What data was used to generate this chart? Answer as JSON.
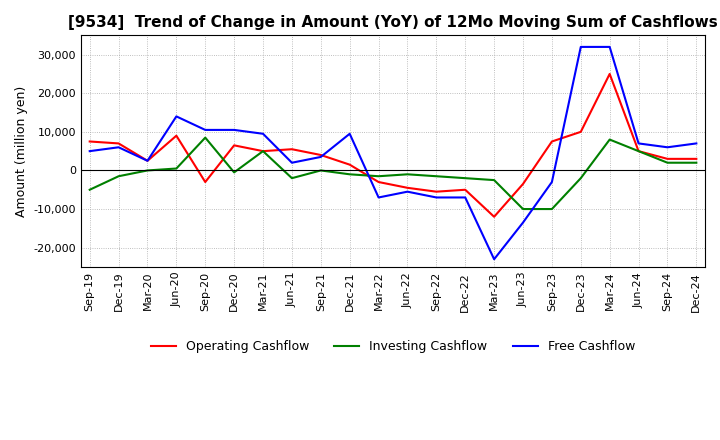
{
  "title": "[9534]  Trend of Change in Amount (YoY) of 12Mo Moving Sum of Cashflows",
  "ylabel": "Amount (million yen)",
  "ylim": [
    -25000,
    35000
  ],
  "yticks": [
    -20000,
    -10000,
    0,
    10000,
    20000,
    30000
  ],
  "x_labels": [
    "Sep-19",
    "Dec-19",
    "Mar-20",
    "Jun-20",
    "Sep-20",
    "Dec-20",
    "Mar-21",
    "Jun-21",
    "Sep-21",
    "Dec-21",
    "Mar-22",
    "Jun-22",
    "Sep-22",
    "Dec-22",
    "Mar-23",
    "Jun-23",
    "Sep-23",
    "Dec-23",
    "Mar-24",
    "Jun-24",
    "Sep-24",
    "Dec-24"
  ],
  "operating": [
    7500,
    7000,
    2500,
    9000,
    -3000,
    6500,
    5000,
    5500,
    4000,
    1500,
    -3000,
    -4500,
    -5500,
    -5000,
    -12000,
    -3500,
    7500,
    10000,
    25000,
    5000,
    3000,
    3000
  ],
  "investing": [
    -5000,
    -1500,
    0,
    500,
    8500,
    -500,
    5000,
    -2000,
    0,
    -1000,
    -1500,
    -1000,
    -1500,
    -2000,
    -2500,
    -10000,
    -10000,
    -2000,
    8000,
    5000,
    2000,
    2000
  ],
  "free": [
    5000,
    6000,
    2500,
    14000,
    10500,
    10500,
    9500,
    2000,
    3500,
    9500,
    -7000,
    -5500,
    -7000,
    -7000,
    -23000,
    -13500,
    -3000,
    32000,
    32000,
    7000,
    6000,
    7000
  ],
  "operating_color": "#ff0000",
  "investing_color": "#008000",
  "free_color": "#0000ff",
  "background_color": "#ffffff",
  "grid_color": "#aaaaaa",
  "title_fontsize": 11,
  "label_fontsize": 9,
  "tick_fontsize": 8
}
